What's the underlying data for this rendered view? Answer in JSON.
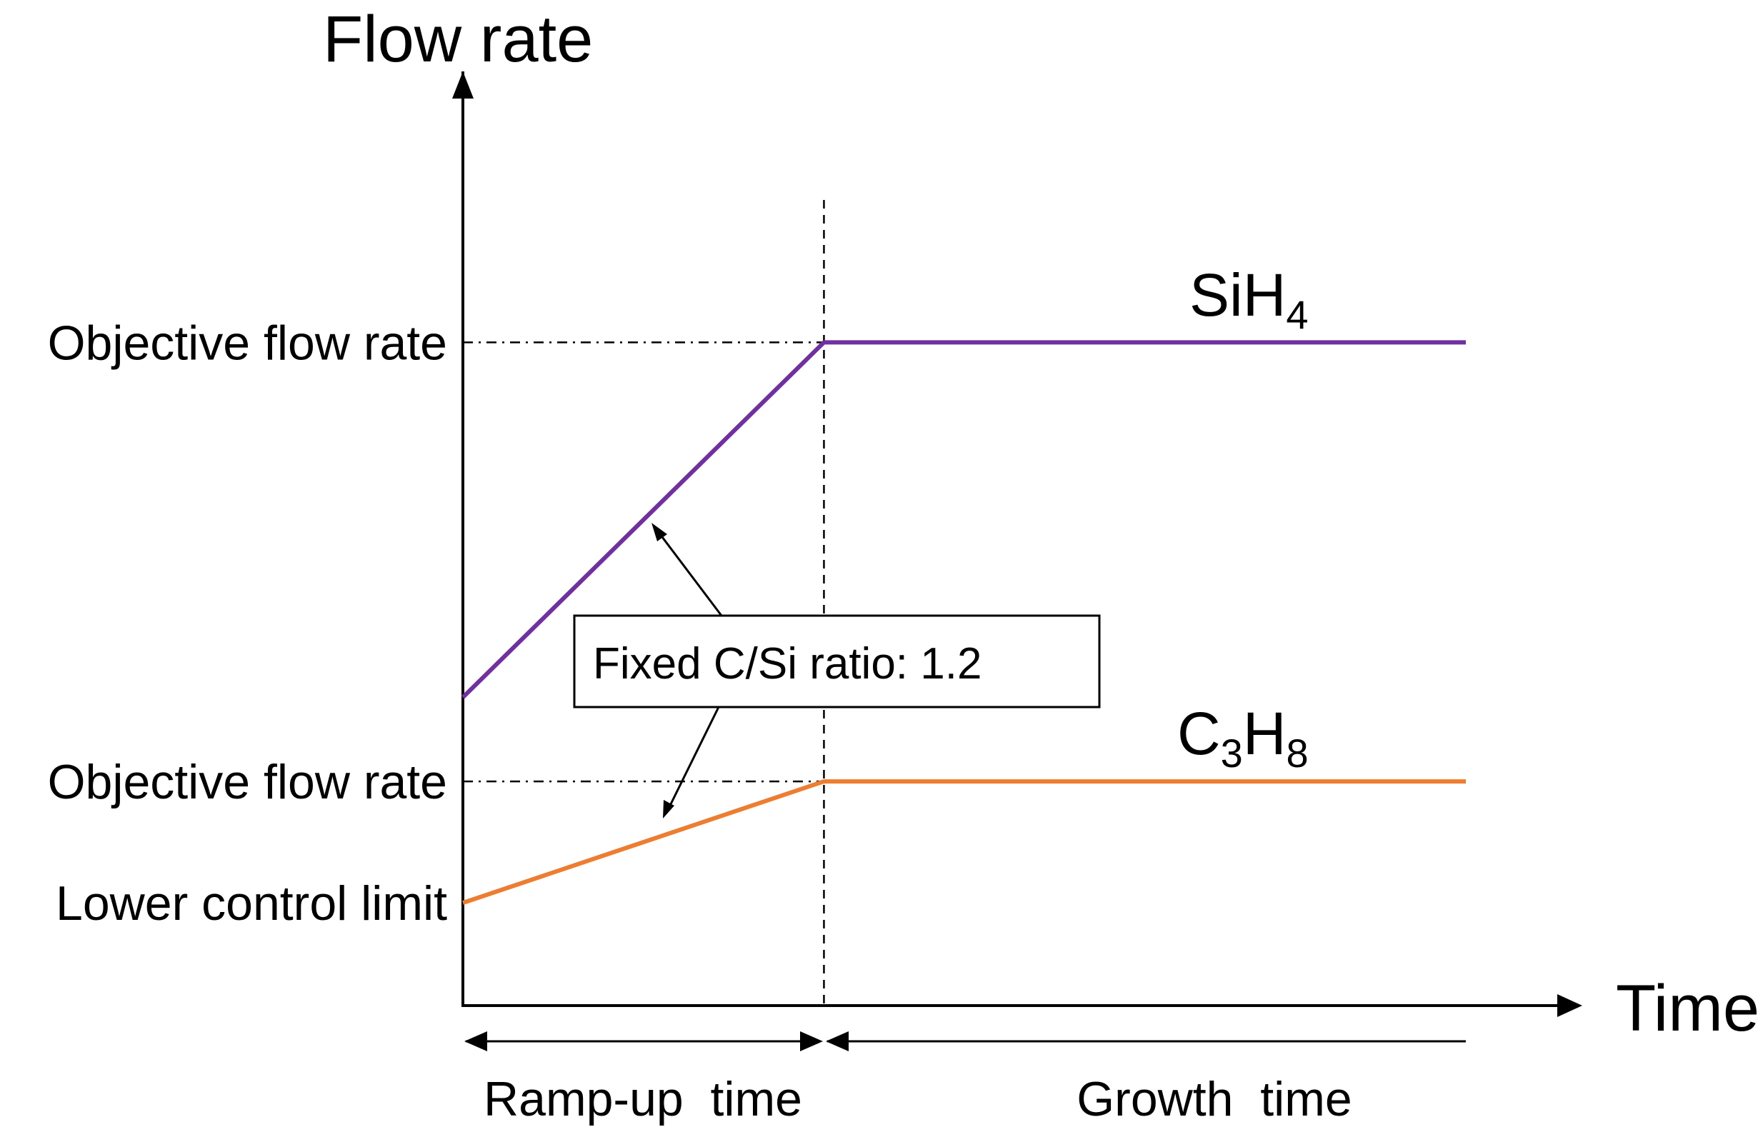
{
  "chart_data": {
    "type": "line",
    "title": "",
    "xlabel": "Time",
    "ylabel": "Flow rate",
    "ytick_labels": {
      "sih4_objective": "Objective flow rate",
      "c3h8_objective": "Objective flow rate",
      "lower_limit": "Lower control limit"
    },
    "annotation": "Fixed C/Si ratio: 1.2",
    "periods": {
      "ramp_up": "Ramp-up  time",
      "growth": "Growth  time"
    },
    "xlim": [
      0,
      1
    ],
    "ylim": [
      0,
      1
    ],
    "ramp_end_x": 0.36,
    "series": [
      {
        "name": "SiH4",
        "formula_base": "SiH",
        "formula_sub": "4",
        "color": "#7030a0",
        "x": [
          0,
          0.36,
          1.0
        ],
        "y": [
          0.33,
          0.71,
          0.71
        ]
      },
      {
        "name": "C3H8",
        "formula_base": "C",
        "formula_sub": "3",
        "formula_base2": "H",
        "formula_sub2": "8",
        "color": "#ed7d31",
        "x": [
          0,
          0.36,
          1.0
        ],
        "y": [
          0.11,
          0.24,
          0.24
        ]
      }
    ]
  }
}
